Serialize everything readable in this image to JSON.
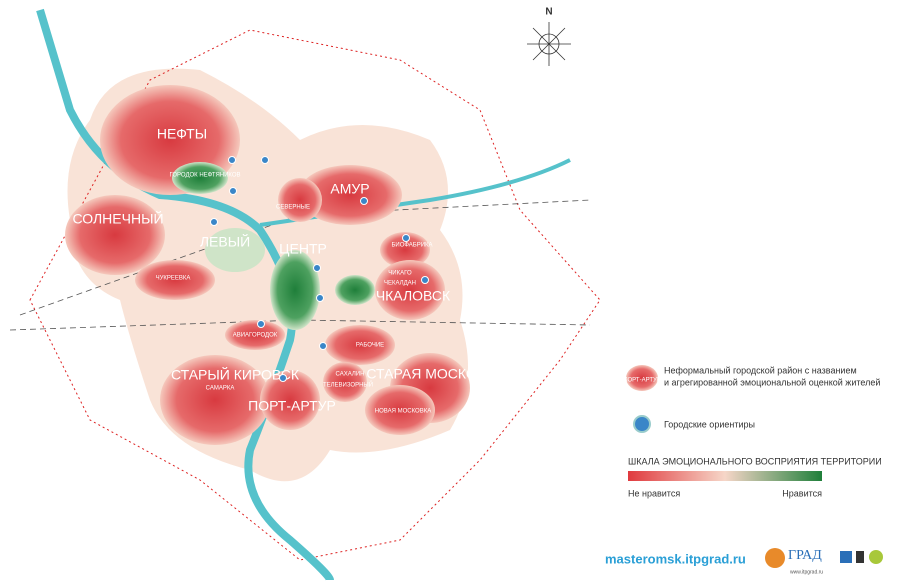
{
  "compass": "N",
  "districts": [
    {
      "name": "НЕФТЫ"
    },
    {
      "name": "ГОРОДОК НЕФТЯНИКОВ"
    },
    {
      "name": "АМУР"
    },
    {
      "name": "СЕВЕРНЫЕ"
    },
    {
      "name": "СОЛНЕЧНЫЙ"
    },
    {
      "name": "ЧУКРЕЕВКА"
    },
    {
      "name": "ЛЕВЫЙ"
    },
    {
      "name": "ЦЕНТР"
    },
    {
      "name": "БИОФАБРИКА"
    },
    {
      "name": "ЧИКАГО"
    },
    {
      "name": "ЧЕКАЛДАН"
    },
    {
      "name": "ЧКАЛОВСК"
    },
    {
      "name": "АВИАГОРОДОК"
    },
    {
      "name": "РАБОЧИЕ"
    },
    {
      "name": "СТАРЫЙ КИРОВСК"
    },
    {
      "name": "САМАРКА"
    },
    {
      "name": "ПОРТ-АРТУР"
    },
    {
      "name": "САХАЛИН"
    },
    {
      "name": "ТЕЛЕВИЗОРНЫЙ"
    },
    {
      "name": "СТАРАЯ МОСКОВКА"
    },
    {
      "name": "НОВАЯ МОСКОВКА"
    }
  ],
  "legend": {
    "district_sample": "ПОРТ-АРТУР",
    "district_text": [
      "Неформальный городской район с названием",
      "и агрегированной эмоциональной оценкой жителей"
    ],
    "landmarks_text": "Городские ориентиры",
    "scale_title": "ШКАЛА ЭМОЦИОНАЛЬНОГО ВОСПРИЯТИЯ ТЕРРИТОРИИ",
    "scale_min": "Не нравится",
    "scale_max": "Нравится"
  },
  "footer": {
    "url": "masteromsk.itpgrad.ru",
    "logo": "ГРАД",
    "logo_url": "www.itpgrad.ru"
  }
}
